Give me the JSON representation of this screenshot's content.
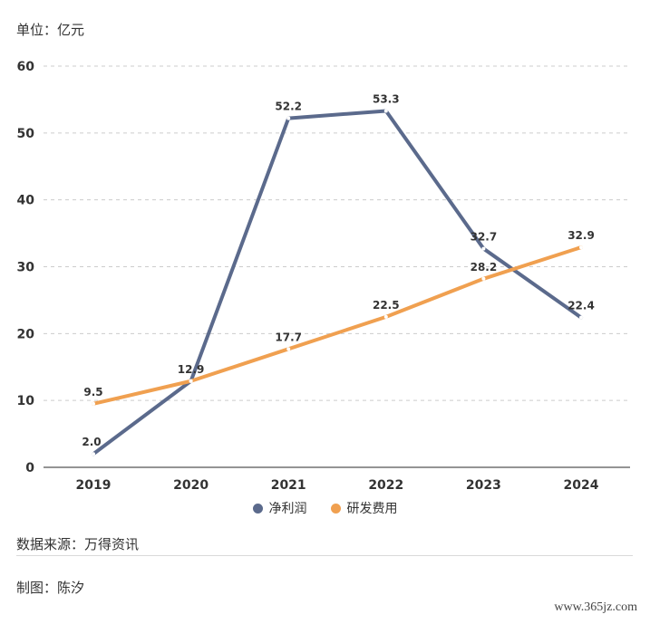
{
  "unit_label": "单位：亿元",
  "source": "数据来源：万得资讯",
  "maker": "制图：陈汐",
  "watermark": "www.365jz.com",
  "chart_data": {
    "type": "line",
    "title": "",
    "xlabel": "",
    "ylabel": "单位：亿元",
    "x": [
      "2019",
      "2020",
      "2021",
      "2022",
      "2023",
      "2024"
    ],
    "ylim": [
      0,
      60
    ],
    "yticks": [
      0,
      10,
      20,
      30,
      40,
      50,
      60
    ],
    "grid": true,
    "legend_position": "bottom",
    "series": [
      {
        "name": "净利润",
        "values": [
          2.0,
          12.9,
          52.2,
          53.3,
          32.7,
          22.4
        ],
        "labels": [
          "2.0",
          "12.9",
          "52.2",
          "53.3",
          "32.7",
          "22.4"
        ],
        "color": "#5b6a8c"
      },
      {
        "name": "研发费用",
        "values": [
          9.5,
          12.9,
          17.7,
          22.5,
          28.2,
          32.9
        ],
        "labels": [
          "9.5",
          "",
          "17.7",
          "22.5",
          "28.2",
          "32.9"
        ],
        "color": "#f0a050"
      }
    ]
  }
}
